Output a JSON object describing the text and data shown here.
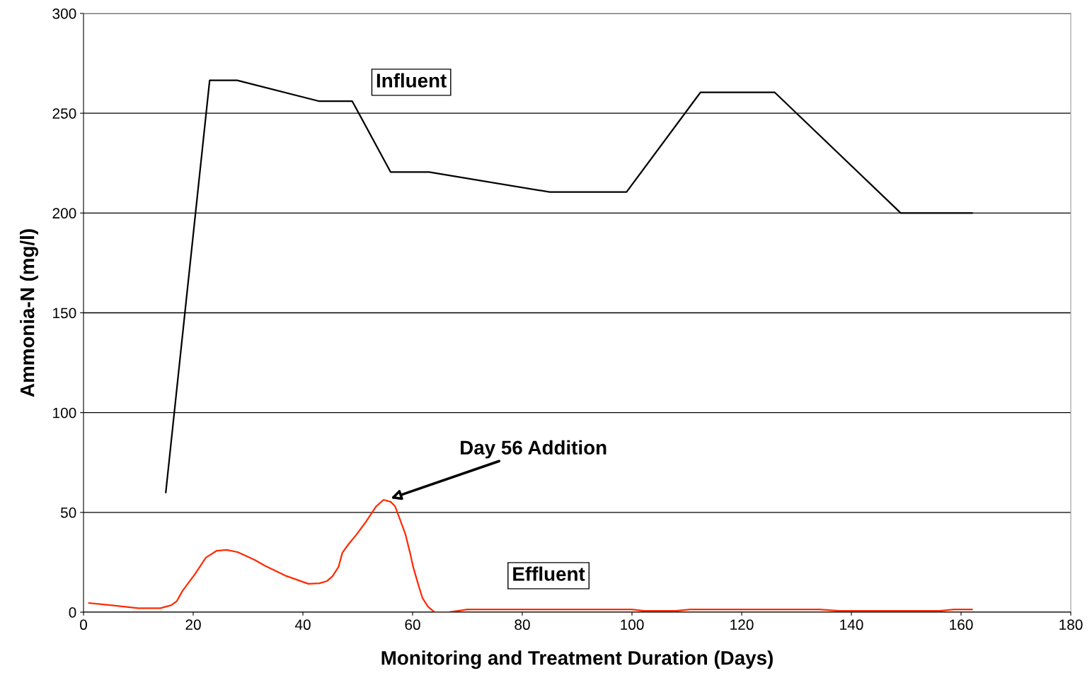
{
  "chart_data": {
    "type": "line",
    "xlabel": "Monitoring and Treatment Duration (Days)",
    "ylabel": "Ammonia-N (mg/l)",
    "xlim": [
      0,
      180
    ],
    "xticks": [
      0,
      20,
      40,
      60,
      80,
      100,
      120,
      140,
      160,
      180
    ],
    "ylim": [
      0,
      300
    ],
    "yticks": [
      0,
      50,
      100,
      150,
      200,
      250,
      300
    ],
    "grid": "y",
    "legend": false,
    "marker": "none",
    "line_style": "solid",
    "series": [
      {
        "name": "Influent",
        "color": "#000000",
        "x": [
          15,
          23,
          28,
          43,
          49,
          56,
          63,
          85,
          99,
          112.5,
          126,
          149,
          162
        ],
        "values": [
          60,
          266.5,
          266.5,
          256,
          256,
          220.5,
          220.5,
          210.5,
          210.5,
          260.5,
          260.5,
          200,
          200
        ]
      },
      {
        "name": "Effluent",
        "color": "#ff2a00",
        "x": [
          1,
          5,
          10,
          14,
          16,
          17,
          18,
          20.3,
          22.3,
          24.3,
          26.1,
          28.1,
          31.2,
          33,
          37,
          41,
          43,
          44.4,
          45.4,
          46.5,
          47.2,
          48.3,
          49.8,
          51.6,
          53.3,
          54.7,
          56,
          56.8,
          57.8,
          58.7,
          59.6,
          60.1,
          61,
          61.8,
          62.8,
          64,
          66.5,
          70,
          100,
          102.2,
          108,
          110.6,
          134.2,
          137.8,
          156.1,
          158.7,
          162
        ],
        "values": [
          4.6,
          3.5,
          2,
          2,
          3.5,
          5.5,
          10.5,
          19,
          27.3,
          30.8,
          31.2,
          30.1,
          26.2,
          23.4,
          18.1,
          14.2,
          14.5,
          15.6,
          18,
          22.7,
          29.8,
          34,
          39,
          45.7,
          52.8,
          56.3,
          55.3,
          53.1,
          45.7,
          39,
          29,
          22.7,
          14.2,
          7.1,
          2.8,
          0,
          0,
          1.4,
          1.4,
          0.7,
          0.7,
          1.4,
          1.4,
          0.7,
          0.7,
          1.4,
          1.4
        ]
      }
    ],
    "annotations": [
      {
        "text": "Day 56 Addition",
        "x": 56,
        "y": 57
      }
    ]
  }
}
